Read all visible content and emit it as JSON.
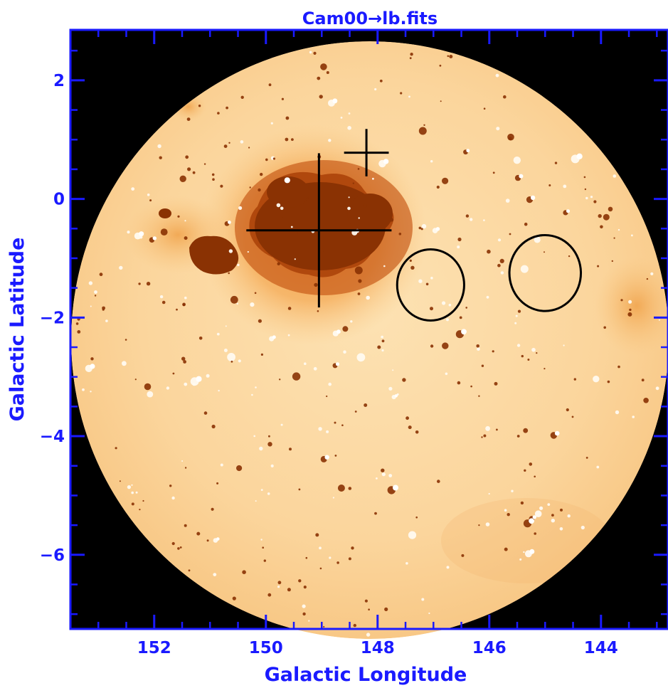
{
  "title": "Cam00→lb.fits",
  "xlabel": "Galactic Longitude",
  "ylabel": "Galactic Latitude",
  "colors": {
    "axis": "#1a1aff",
    "background": "#000000",
    "map_light": "#fbd9a3",
    "map_mid": "#f39a3c",
    "map_dark": "#8a3203",
    "markers": "#000000"
  },
  "axes": {
    "x_range": [
      153.5,
      142.8
    ],
    "y_range": [
      -7.25,
      2.85
    ],
    "x_ticks": [
      {
        "value": 152,
        "label": "152"
      },
      {
        "value": 150,
        "label": "150"
      },
      {
        "value": 148,
        "label": "148"
      },
      {
        "value": 146,
        "label": "146"
      },
      {
        "value": 144,
        "label": "144"
      }
    ],
    "y_ticks": [
      {
        "value": 2,
        "label": "2"
      },
      {
        "value": 0,
        "label": "0"
      },
      {
        "value": -2,
        "label": "−2"
      },
      {
        "value": -4,
        "label": "−4"
      },
      {
        "value": -6,
        "label": "−6"
      }
    ]
  },
  "markers": [
    {
      "type": "cross",
      "l": 149.05,
      "b": -0.53,
      "size": 1.3
    },
    {
      "type": "cross",
      "l": 148.2,
      "b": 0.78,
      "size": 0.4
    },
    {
      "type": "circle",
      "l": 147.05,
      "b": -1.45,
      "r": 0.6
    },
    {
      "type": "circle",
      "l": 145.0,
      "b": -1.25,
      "r": 0.64
    }
  ]
}
